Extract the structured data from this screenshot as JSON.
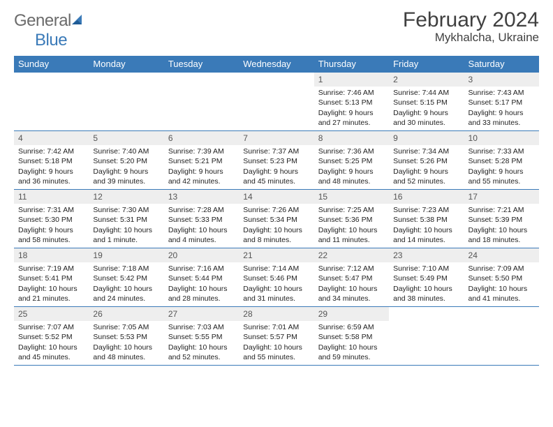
{
  "brand": {
    "word1": "General",
    "word2": "Blue"
  },
  "title": "February 2024",
  "location": "Mykhalcha, Ukraine",
  "colors": {
    "accent": "#3a7ab8",
    "header_text": "#ffffff",
    "daynum_bg": "#eeeeee",
    "text": "#222222",
    "logo_gray": "#6b6b6b"
  },
  "weekdays": [
    "Sunday",
    "Monday",
    "Tuesday",
    "Wednesday",
    "Thursday",
    "Friday",
    "Saturday"
  ],
  "weeks": [
    [
      {
        "empty": true
      },
      {
        "empty": true
      },
      {
        "empty": true
      },
      {
        "empty": true
      },
      {
        "n": "1",
        "sr": "7:46 AM",
        "ss": "5:13 PM",
        "dl": "9 hours and 27 minutes."
      },
      {
        "n": "2",
        "sr": "7:44 AM",
        "ss": "5:15 PM",
        "dl": "9 hours and 30 minutes."
      },
      {
        "n": "3",
        "sr": "7:43 AM",
        "ss": "5:17 PM",
        "dl": "9 hours and 33 minutes."
      }
    ],
    [
      {
        "n": "4",
        "sr": "7:42 AM",
        "ss": "5:18 PM",
        "dl": "9 hours and 36 minutes."
      },
      {
        "n": "5",
        "sr": "7:40 AM",
        "ss": "5:20 PM",
        "dl": "9 hours and 39 minutes."
      },
      {
        "n": "6",
        "sr": "7:39 AM",
        "ss": "5:21 PM",
        "dl": "9 hours and 42 minutes."
      },
      {
        "n": "7",
        "sr": "7:37 AM",
        "ss": "5:23 PM",
        "dl": "9 hours and 45 minutes."
      },
      {
        "n": "8",
        "sr": "7:36 AM",
        "ss": "5:25 PM",
        "dl": "9 hours and 48 minutes."
      },
      {
        "n": "9",
        "sr": "7:34 AM",
        "ss": "5:26 PM",
        "dl": "9 hours and 52 minutes."
      },
      {
        "n": "10",
        "sr": "7:33 AM",
        "ss": "5:28 PM",
        "dl": "9 hours and 55 minutes."
      }
    ],
    [
      {
        "n": "11",
        "sr": "7:31 AM",
        "ss": "5:30 PM",
        "dl": "9 hours and 58 minutes."
      },
      {
        "n": "12",
        "sr": "7:30 AM",
        "ss": "5:31 PM",
        "dl": "10 hours and 1 minute."
      },
      {
        "n": "13",
        "sr": "7:28 AM",
        "ss": "5:33 PM",
        "dl": "10 hours and 4 minutes."
      },
      {
        "n": "14",
        "sr": "7:26 AM",
        "ss": "5:34 PM",
        "dl": "10 hours and 8 minutes."
      },
      {
        "n": "15",
        "sr": "7:25 AM",
        "ss": "5:36 PM",
        "dl": "10 hours and 11 minutes."
      },
      {
        "n": "16",
        "sr": "7:23 AM",
        "ss": "5:38 PM",
        "dl": "10 hours and 14 minutes."
      },
      {
        "n": "17",
        "sr": "7:21 AM",
        "ss": "5:39 PM",
        "dl": "10 hours and 18 minutes."
      }
    ],
    [
      {
        "n": "18",
        "sr": "7:19 AM",
        "ss": "5:41 PM",
        "dl": "10 hours and 21 minutes."
      },
      {
        "n": "19",
        "sr": "7:18 AM",
        "ss": "5:42 PM",
        "dl": "10 hours and 24 minutes."
      },
      {
        "n": "20",
        "sr": "7:16 AM",
        "ss": "5:44 PM",
        "dl": "10 hours and 28 minutes."
      },
      {
        "n": "21",
        "sr": "7:14 AM",
        "ss": "5:46 PM",
        "dl": "10 hours and 31 minutes."
      },
      {
        "n": "22",
        "sr": "7:12 AM",
        "ss": "5:47 PM",
        "dl": "10 hours and 34 minutes."
      },
      {
        "n": "23",
        "sr": "7:10 AM",
        "ss": "5:49 PM",
        "dl": "10 hours and 38 minutes."
      },
      {
        "n": "24",
        "sr": "7:09 AM",
        "ss": "5:50 PM",
        "dl": "10 hours and 41 minutes."
      }
    ],
    [
      {
        "n": "25",
        "sr": "7:07 AM",
        "ss": "5:52 PM",
        "dl": "10 hours and 45 minutes."
      },
      {
        "n": "26",
        "sr": "7:05 AM",
        "ss": "5:53 PM",
        "dl": "10 hours and 48 minutes."
      },
      {
        "n": "27",
        "sr": "7:03 AM",
        "ss": "5:55 PM",
        "dl": "10 hours and 52 minutes."
      },
      {
        "n": "28",
        "sr": "7:01 AM",
        "ss": "5:57 PM",
        "dl": "10 hours and 55 minutes."
      },
      {
        "n": "29",
        "sr": "6:59 AM",
        "ss": "5:58 PM",
        "dl": "10 hours and 59 minutes."
      },
      {
        "empty": true
      },
      {
        "empty": true
      }
    ]
  ],
  "labels": {
    "sunrise": "Sunrise: ",
    "sunset": "Sunset: ",
    "daylight": "Daylight: "
  }
}
